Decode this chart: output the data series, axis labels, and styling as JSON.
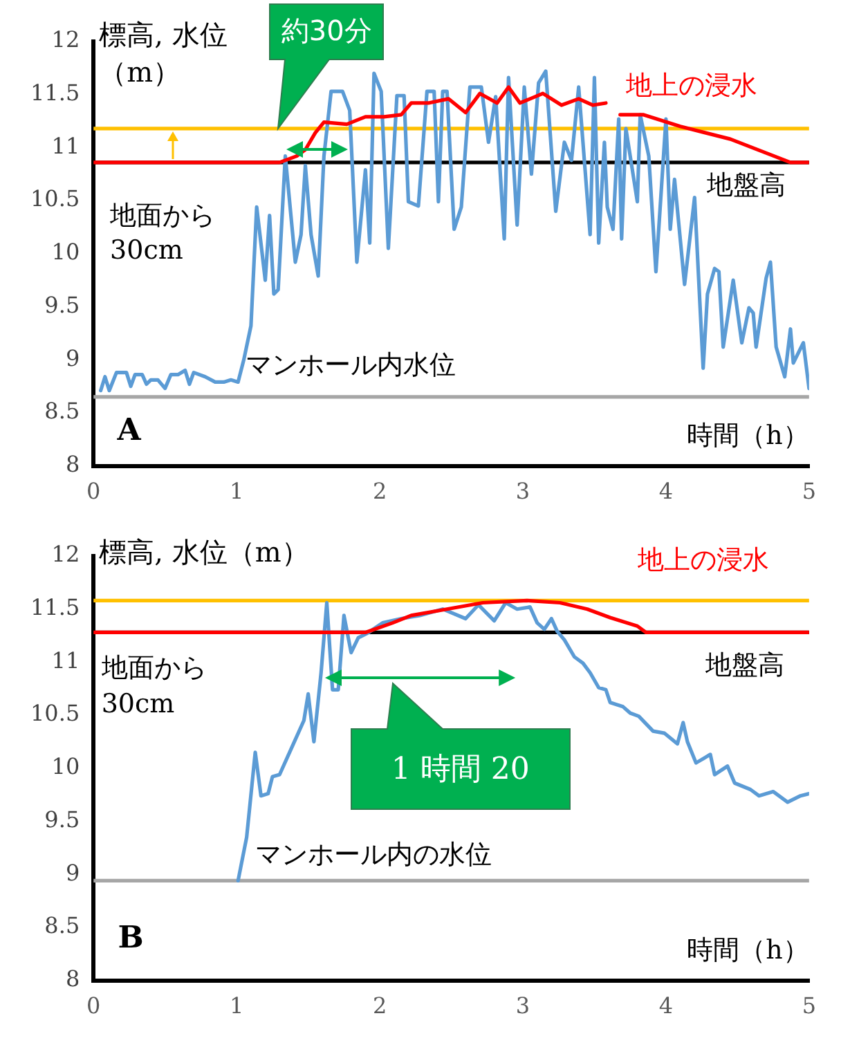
{
  "chart_data": [
    {
      "type": "line",
      "xlabel": "時間（h）",
      "ylabel": "標高, 水位（m）",
      "xlim": [
        0,
        5
      ],
      "xticks": [
        0,
        1,
        2,
        3,
        4,
        5
      ],
      "ylim": [
        8,
        12
      ],
      "yticks": [
        8,
        8.5,
        9,
        9.5,
        10,
        10.5,
        11,
        11.5,
        12
      ],
      "grid": false,
      "legend": false,
      "marker": "none",
      "line_style": "solid",
      "series": [
        {
          "color": "#5b9bd5",
          "x": [
            0.05,
            0.08,
            0.11,
            0.16,
            0.23,
            0.26,
            0.29,
            0.34,
            0.37,
            0.4,
            0.45,
            0.5,
            0.54,
            0.59,
            0.64,
            0.67,
            0.7,
            0.78,
            0.85,
            0.91,
            0.96,
            1.01,
            1.05,
            1.1,
            1.14,
            1.2,
            1.23,
            1.26,
            1.29,
            1.34,
            1.41,
            1.45,
            1.48,
            1.52,
            1.57,
            1.61,
            1.66,
            1.74,
            1.79,
            1.84,
            1.9,
            1.93,
            1.96,
            2.01,
            2.06,
            2.12,
            2.17,
            2.2,
            2.27,
            2.33,
            2.38,
            2.41,
            2.44,
            2.47,
            2.52,
            2.57,
            2.63,
            2.71,
            2.76,
            2.81,
            2.87,
            2.9,
            2.96,
            3.01,
            3.06,
            3.11,
            3.16,
            3.23,
            3.29,
            3.34,
            3.39,
            3.47,
            3.5,
            3.53,
            3.57,
            3.59,
            3.63,
            3.67,
            3.69,
            3.72,
            3.8,
            3.82,
            3.88,
            3.93,
            4.0,
            4.03,
            4.06,
            4.13,
            4.2,
            4.26,
            4.29,
            4.34,
            4.37,
            4.4,
            4.47,
            4.53,
            4.58,
            4.61,
            4.63,
            4.7,
            4.73,
            4.77,
            4.83,
            4.87,
            4.89,
            4.96,
            5.0
          ],
          "values": [
            8.71,
            8.84,
            8.71,
            8.88,
            8.88,
            8.75,
            8.86,
            8.86,
            8.77,
            8.81,
            8.81,
            8.73,
            8.86,
            8.86,
            8.9,
            8.77,
            8.88,
            8.84,
            8.79,
            8.79,
            8.81,
            8.79,
            9.0,
            9.32,
            10.44,
            9.75,
            10.36,
            9.62,
            9.66,
            10.92,
            9.92,
            10.18,
            10.83,
            10.18,
            9.79,
            10.92,
            11.53,
            11.53,
            11.35,
            9.92,
            10.79,
            10.1,
            11.7,
            11.53,
            10.05,
            11.49,
            11.49,
            10.49,
            10.45,
            11.53,
            11.53,
            10.49,
            11.53,
            11.53,
            10.23,
            10.44,
            11.57,
            11.57,
            11.05,
            11.48,
            10.14,
            11.66,
            10.27,
            11.57,
            10.75,
            11.61,
            11.72,
            10.4,
            11.05,
            10.88,
            11.57,
            10.18,
            11.66,
            10.1,
            11.05,
            10.44,
            10.23,
            11.27,
            10.14,
            11.18,
            10.49,
            11.31,
            10.92,
            9.83,
            11.27,
            10.23,
            10.7,
            9.71,
            10.53,
            8.92,
            9.62,
            9.86,
            9.83,
            9.12,
            9.75,
            9.16,
            9.49,
            9.44,
            9.12,
            9.77,
            9.92,
            9.12,
            8.84,
            9.29,
            8.97,
            9.16,
            8.73
          ]
        },
        {
          "name": "地上の浸水",
          "color": "#ff0000",
          "x": [
            0,
            1.3,
            1.42,
            1.48,
            1.55,
            1.61,
            1.77,
            1.9,
            2.03,
            2.15,
            2.22,
            2.34,
            2.48,
            2.6,
            2.7,
            2.82,
            2.9,
            2.98,
            3.14,
            3.27,
            3.39,
            3.49,
            3.58,
            3.63,
            3.68,
            3.84,
            4.1,
            4.45,
            4.87,
            5.0
          ],
          "values": [
            10.86,
            10.86,
            10.92,
            10.98,
            11.14,
            11.24,
            11.22,
            11.29,
            11.29,
            11.31,
            11.42,
            11.42,
            11.46,
            11.33,
            11.51,
            11.42,
            11.57,
            11.42,
            11.51,
            11.4,
            11.46,
            11.4,
            11.42,
            null,
            11.31,
            11.31,
            11.2,
            11.08,
            10.86,
            10.86
          ]
        }
      ],
      "ref_lines": [
        {
          "axis": "y",
          "value": 8.65,
          "color": "#a6a6a6"
        },
        {
          "axis": "y",
          "value": 10.86,
          "label": "地盤高",
          "color": "#000000"
        },
        {
          "axis": "y",
          "value": 11.18,
          "label": "地面から30cm",
          "color": "#ffc000"
        }
      ],
      "annotations": [
        {
          "text": "約30分",
          "x": 1.29,
          "y": 11.18
        },
        "A",
        "マンホール内水位"
      ]
    },
    {
      "type": "line",
      "xlabel": "時間（h）",
      "ylabel": "標高, 水位（m）",
      "xlim": [
        0,
        5
      ],
      "xticks": [
        0,
        1,
        2,
        3,
        4,
        5
      ],
      "ylim": [
        8,
        12
      ],
      "yticks": [
        8,
        8.5,
        9,
        9.5,
        10,
        10.5,
        11,
        11.5,
        12
      ],
      "grid": false,
      "legend": false,
      "marker": "none",
      "line_style": "solid",
      "series": [
        {
          "color": "#5b9bd5",
          "x": [
            1.01,
            1.07,
            1.13,
            1.17,
            1.22,
            1.25,
            1.3,
            1.39,
            1.47,
            1.5,
            1.54,
            1.59,
            1.63,
            1.67,
            1.71,
            1.75,
            1.8,
            1.85,
            1.91,
            2.02,
            2.15,
            2.28,
            2.44,
            2.6,
            2.69,
            2.8,
            2.88,
            2.96,
            3.05,
            3.1,
            3.15,
            3.2,
            3.24,
            3.29,
            3.36,
            3.42,
            3.47,
            3.53,
            3.58,
            3.61,
            3.7,
            3.75,
            3.81,
            3.91,
            3.99,
            4.08,
            4.12,
            4.15,
            4.21,
            4.31,
            4.34,
            4.43,
            4.48,
            4.59,
            4.65,
            4.75,
            4.85,
            4.94,
            5.0
          ],
          "values": [
            8.94,
            9.35,
            10.15,
            9.74,
            9.76,
            9.92,
            9.94,
            10.21,
            10.45,
            10.7,
            10.25,
            10.9,
            11.56,
            10.74,
            10.74,
            11.44,
            11.09,
            11.23,
            11.27,
            11.37,
            11.41,
            11.44,
            11.5,
            11.41,
            11.54,
            11.39,
            11.56,
            11.5,
            11.52,
            11.37,
            11.31,
            11.41,
            11.29,
            11.21,
            11.05,
            10.99,
            10.9,
            10.76,
            10.74,
            10.62,
            10.58,
            10.52,
            10.49,
            10.35,
            10.33,
            10.23,
            10.43,
            10.25,
            10.05,
            10.13,
            9.94,
            10.02,
            9.86,
            9.8,
            9.74,
            9.78,
            9.68,
            9.74,
            9.76
          ]
        },
        {
          "name": "地上の浸水",
          "color": "#ff0000",
          "x": [
            0,
            1.9,
            2.09,
            2.22,
            2.47,
            2.72,
            3.03,
            3.26,
            3.45,
            3.61,
            3.8,
            3.86,
            5.0
          ],
          "values": [
            11.28,
            11.28,
            11.37,
            11.44,
            11.5,
            11.56,
            11.58,
            11.56,
            11.5,
            11.42,
            11.34,
            11.28,
            11.28
          ]
        }
      ],
      "ref_lines": [
        {
          "axis": "y",
          "value": 8.94,
          "color": "#a6a6a6"
        },
        {
          "axis": "y",
          "value": 11.28,
          "label": "地盤高",
          "color": "#000000"
        },
        {
          "axis": "y",
          "value": 11.58,
          "label": "地面から30cm",
          "color": "#ffc000"
        }
      ],
      "annotations": [
        "1 時間 20",
        "B",
        "マンホール内の水位"
      ]
    }
  ]
}
